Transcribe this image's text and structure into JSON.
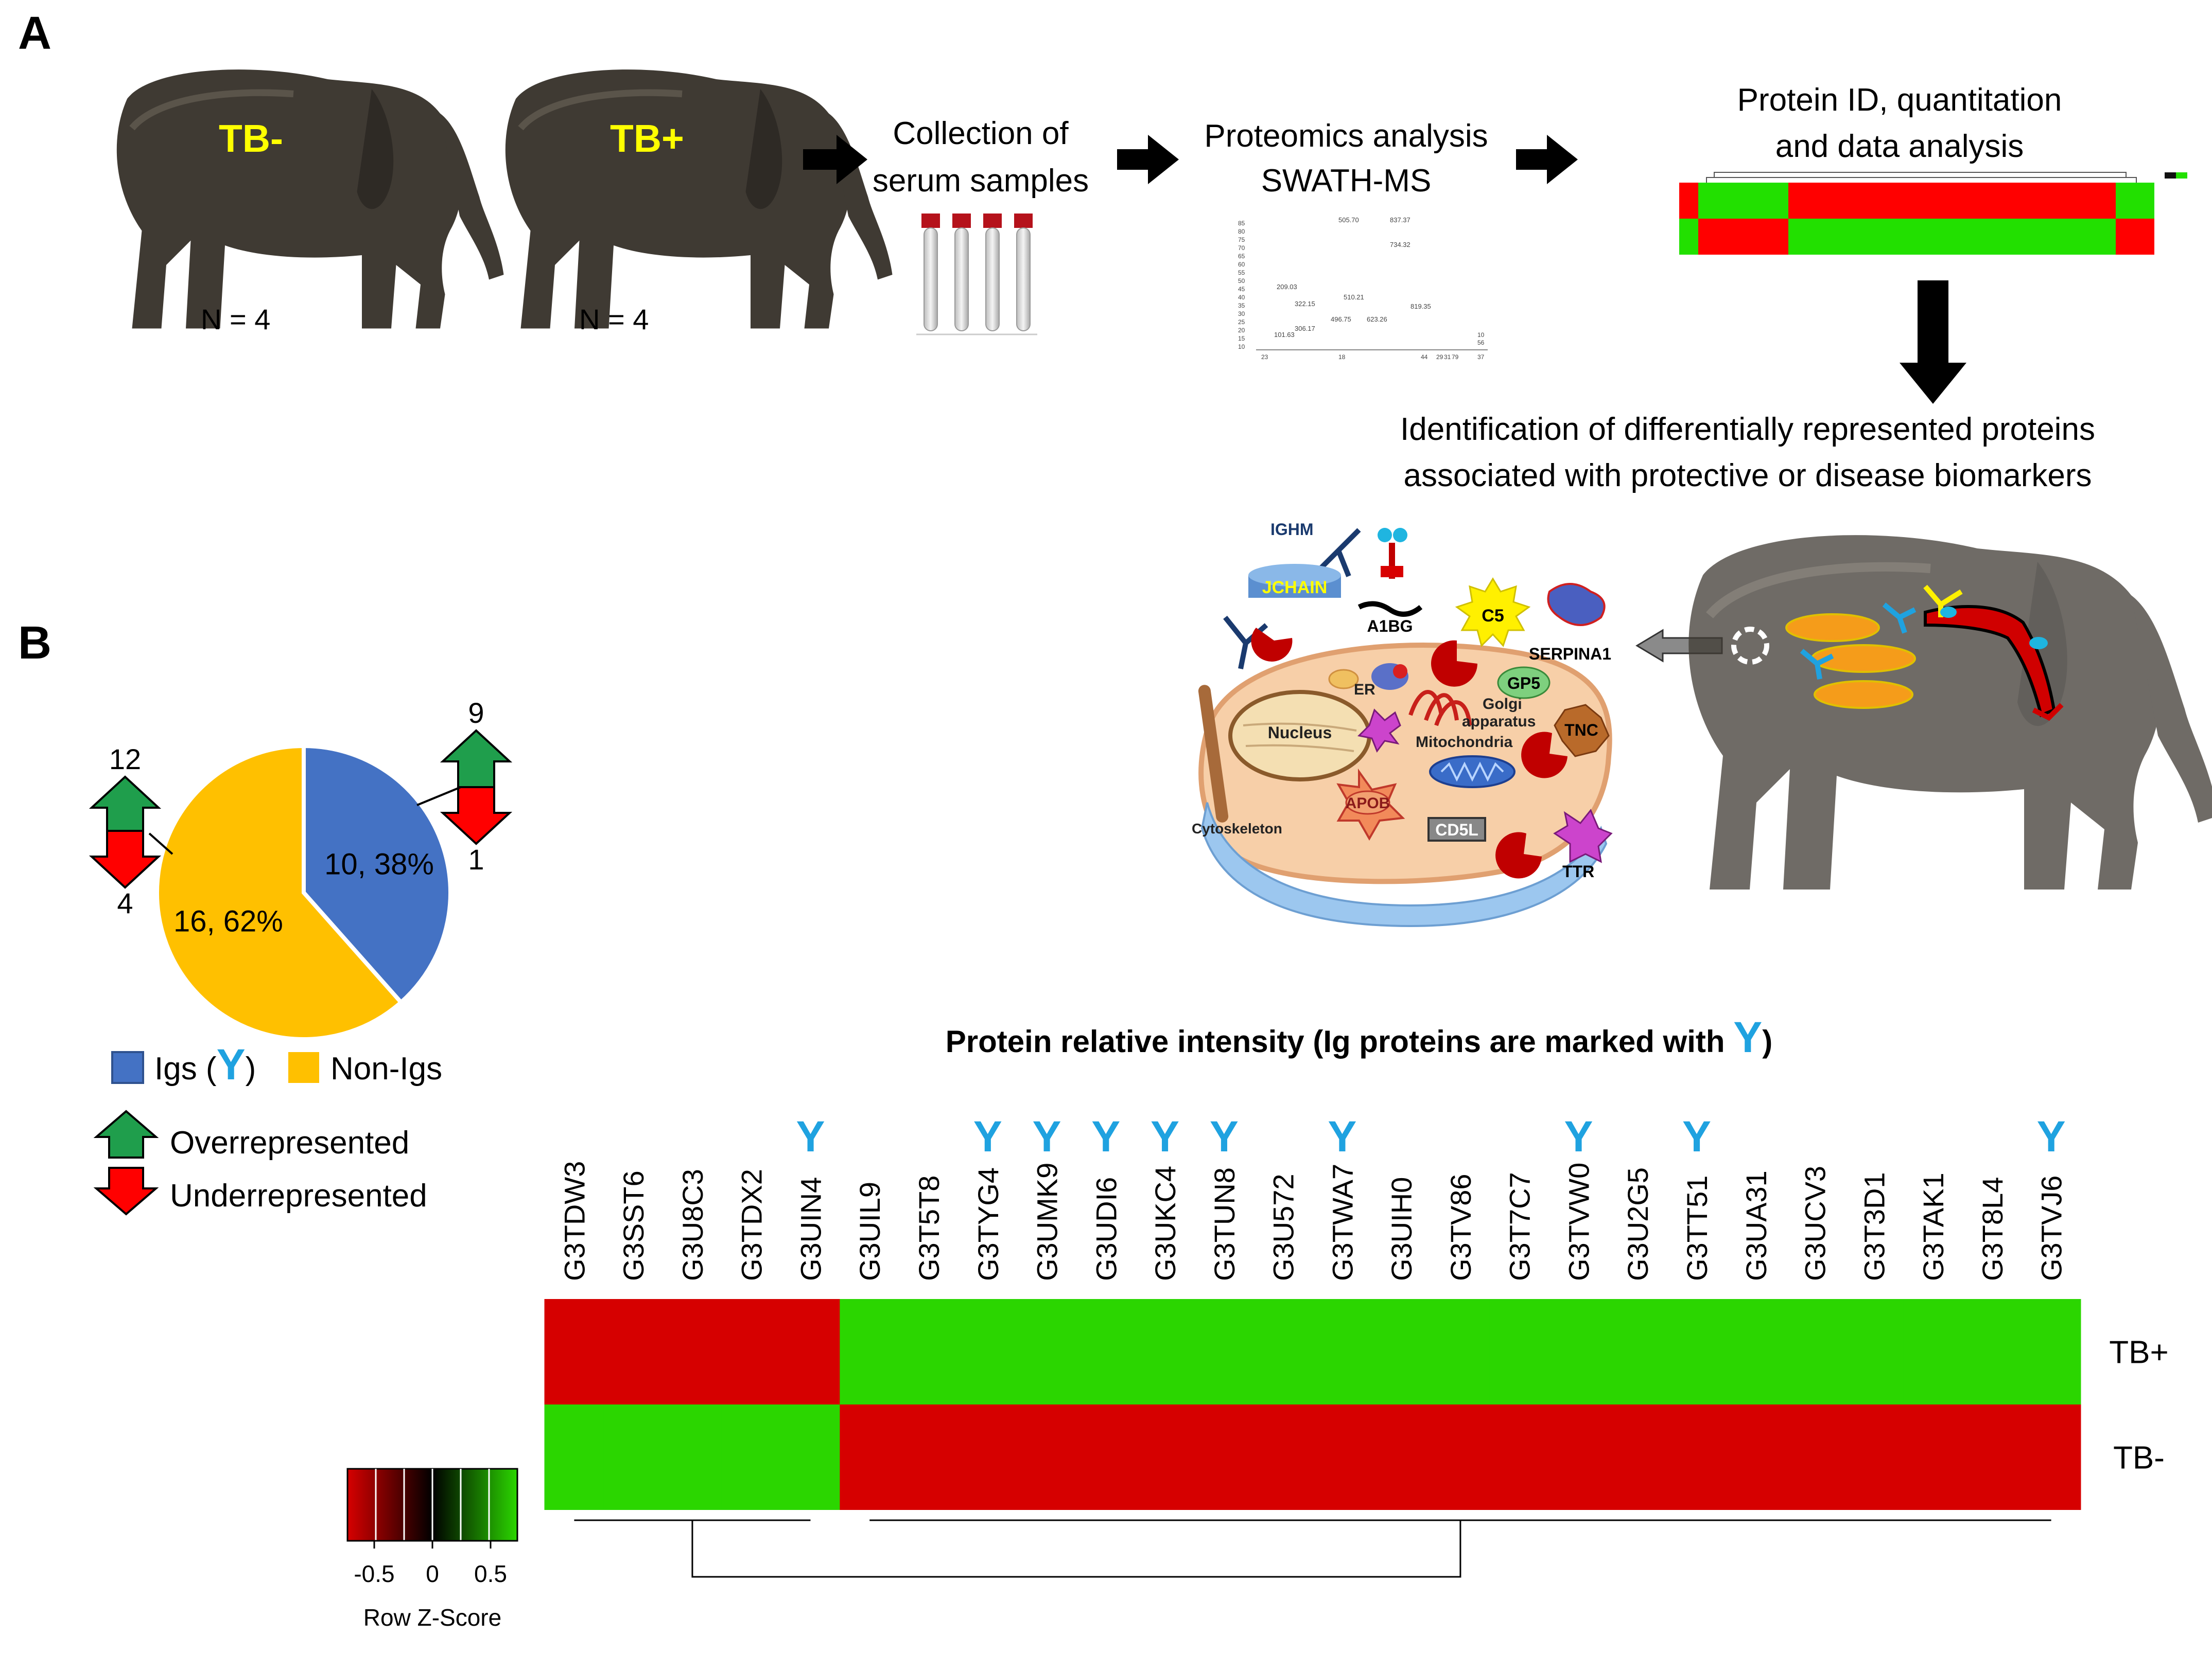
{
  "panels": {
    "a": "A",
    "b": "B"
  },
  "panel_a": {
    "elephant_neg_label": "TB-",
    "elephant_pos_label": "TB+",
    "n_neg": "N = 4",
    "n_pos": "N = 4",
    "step1_line1": "Collection of",
    "step1_line2": "serum samples",
    "step2_line1": "Proteomics analysis",
    "step2_line2": "SWATH-MS",
    "step3_line1": "Protein ID, quantitation",
    "step3_line2": "and data analysis",
    "conclusion_line1": "Identification of differentially represented proteins",
    "conclusion_line2": "associated with protective or disease biomarkers",
    "spectrum_labels": [
      "85",
      "80",
      "75",
      "70",
      "65",
      "60",
      "55",
      "50",
      "45",
      "40",
      "35",
      "30",
      "25",
      "20",
      "15",
      "10",
      "505.70",
      "837.37",
      "734.32",
      "209.03",
      "510.21",
      "322.15",
      "819.35",
      "496.75",
      "623.26",
      "306.17",
      "101.63",
      "10",
      "56",
      "23",
      "18",
      "44",
      "29",
      "31",
      "79",
      "37"
    ]
  },
  "cell": {
    "ighm": "IGHM",
    "jchain": "JCHAIN",
    "a1bg": "A1BG",
    "c5": "C5",
    "serpina1": "SERPINA1",
    "er": "ER",
    "golgi1": "Golgi",
    "golgi2": "apparatus",
    "gp5": "GP5",
    "tnc": "TNC",
    "nucleus": "Nucleus",
    "mitochondria": "Mitochondria",
    "apob": "APOB",
    "cd5l": "CD5L",
    "cytoskeleton": "Cytoskeleton",
    "ttr": "TTR"
  },
  "pie": {
    "title_igs": "Igs (",
    "title_igs_close": ")",
    "ig_marker": "Y",
    "legend_nonigs": "Non-Igs",
    "legend_over": "Overrepresented",
    "legend_under": "Underrepresented",
    "slices": [
      {
        "name": "Igs",
        "value": 10,
        "label": "10, 38%",
        "color": "#4472C4"
      },
      {
        "name": "Non-Igs",
        "value": 16,
        "label": "16, 62%",
        "color": "#FFC000"
      }
    ],
    "igs_over": "9",
    "igs_under": "1",
    "nonigs_over": "12",
    "nonigs_under": "4"
  },
  "heatmap": {
    "title": "Protein relative intensity (Ig proteins are marked with",
    "title_close": ")",
    "ig_marker": "Y",
    "rows": [
      "TB+",
      "TB-"
    ],
    "colorkey_title": "Row Z-Score",
    "colorkey_ticks": [
      "-0.5",
      "0",
      "0.5"
    ],
    "colors": {
      "high": "#2BD600",
      "low": "#D60000",
      "ig": "#1FA2E0"
    }
  },
  "chart_data": {
    "type": "heatmap",
    "title": "Protein relative intensity (Ig proteins are marked with Y)",
    "rows": [
      "TB+",
      "TB-"
    ],
    "columns": [
      "G3TDW3",
      "G3SST6",
      "G3U8C3",
      "G3TDX2",
      "G3UIN4",
      "G3UIL9",
      "G3T5T8",
      "G3TYG4",
      "G3UMK9",
      "G3UDI6",
      "G3UKC4",
      "G3TUN8",
      "G3U572",
      "G3TWA7",
      "G3UIH0",
      "G3TV86",
      "G3T7C7",
      "G3TVW0",
      "G3U2G5",
      "G3TT51",
      "G3UA31",
      "G3UCV3",
      "G3T3D1",
      "G3TAK1",
      "G3T8L4",
      "G3TVJ6"
    ],
    "ig_proteins": [
      "G3UIN4",
      "G3TYG4",
      "G3UMK9",
      "G3UDI6",
      "G3UKC4",
      "G3TUN8",
      "G3TWA7",
      "G3TVW0",
      "G3TT51",
      "G3TVJ6"
    ],
    "zscore": {
      "TB+": [
        -0.7,
        -0.7,
        -0.7,
        -0.7,
        -0.7,
        0.7,
        0.7,
        0.7,
        0.7,
        0.7,
        0.7,
        0.7,
        0.7,
        0.7,
        0.7,
        0.7,
        0.7,
        0.7,
        0.7,
        0.7,
        0.7,
        0.7,
        0.7,
        0.7,
        0.7,
        0.7
      ],
      "TB-": [
        0.7,
        0.7,
        0.7,
        0.7,
        0.7,
        -0.7,
        -0.7,
        -0.7,
        -0.7,
        -0.7,
        -0.7,
        -0.7,
        -0.7,
        -0.7,
        -0.7,
        -0.7,
        -0.7,
        -0.7,
        -0.7,
        -0.7,
        -0.7,
        -0.7,
        -0.7,
        -0.7,
        -0.7,
        -0.7
      ]
    },
    "colorkey_range": [
      -0.7,
      0.7
    ],
    "xlabel": "",
    "ylabel": ""
  }
}
